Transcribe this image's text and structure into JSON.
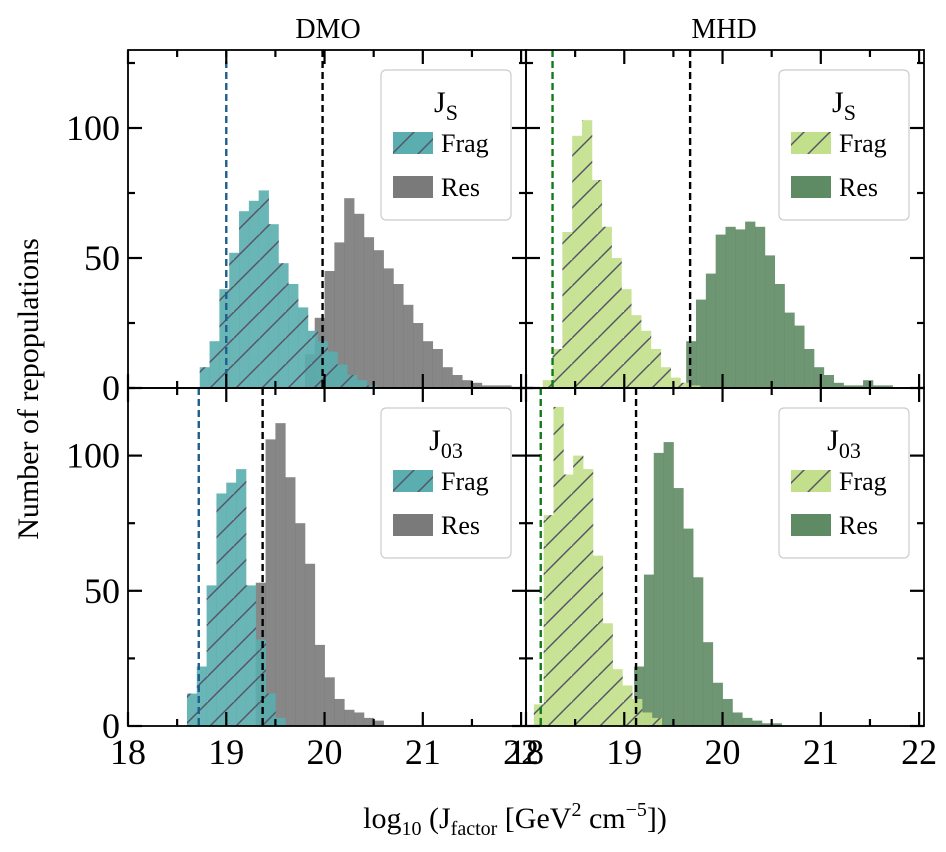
{
  "figure": {
    "column_titles": [
      "DMO",
      "MHD"
    ],
    "ylabel": "Number of repopulations",
    "xlabel_parts": {
      "prefix": "log",
      "prefix_sub": "10",
      "open": " (J",
      "factor_sub": "factor",
      "unit_a": " [GeV",
      "unit_a_sup": "2",
      "unit_b": " cm",
      "unit_b_sup": "−5",
      "close": "])"
    },
    "xticks": [
      "18",
      "19",
      "20",
      "21",
      "22"
    ],
    "yticks": [
      "0",
      "50",
      "100"
    ]
  },
  "legend": {
    "title_main": "J",
    "frag_label": "Frag",
    "res_label": "Res"
  },
  "colors": {
    "dmo_frag": "#5aaeaf",
    "dmo_res": "#7a7a7a",
    "mhd_frag": "#c2e08b",
    "mhd_res": "#5f8b64",
    "dmo_frag_line": "#1f5e8c",
    "mhd_frag_line": "#127a1a",
    "res_line": "#000000",
    "hatch": "#555566"
  },
  "chart_data": [
    {
      "type": "bar",
      "panel": "DMO J_S",
      "title": "DMO",
      "legend_title": "J",
      "legend_sub": "S",
      "xlim": [
        18,
        22.05
      ],
      "ylim": [
        0,
        130
      ],
      "bin_width": 0.1,
      "series": [
        {
          "name": "Frag",
          "color_key": "dmo_frag",
          "hatched": true,
          "start": 18.73,
          "values": [
            8,
            18,
            38,
            52,
            68,
            72,
            76,
            63,
            48,
            40,
            31,
            22,
            18,
            14,
            9,
            5,
            3,
            1
          ]
        },
        {
          "name": "Res",
          "color_key": "dmo_res",
          "start": 19.8,
          "values": [
            13,
            27,
            45,
            56,
            73,
            67,
            58,
            53,
            46,
            40,
            32,
            25,
            18,
            15,
            8,
            5,
            3,
            2,
            1,
            1,
            1
          ]
        }
      ],
      "vlines": [
        {
          "x": 19.0,
          "color_key": "dmo_frag_line"
        },
        {
          "x": 19.98,
          "color_key": "res_line"
        }
      ]
    },
    {
      "type": "bar",
      "panel": "MHD J_S",
      "title": "MHD",
      "legend_title": "J",
      "legend_sub": "S",
      "xlim": [
        18,
        22.05
      ],
      "ylim": [
        0,
        130
      ],
      "bin_width": 0.1,
      "series": [
        {
          "name": "Frag",
          "color_key": "mhd_frag",
          "hatched": true,
          "start": 18.17,
          "values": [
            3,
            15,
            60,
            97,
            103,
            80,
            62,
            50,
            38,
            28,
            22,
            15,
            8,
            4,
            2,
            1
          ]
        },
        {
          "name": "Res",
          "color_key": "mhd_res",
          "start": 19.63,
          "values": [
            18,
            34,
            44,
            59,
            62,
            61,
            64,
            62,
            51,
            40,
            29,
            24,
            15,
            8,
            5,
            2,
            1,
            1,
            3,
            1,
            1
          ]
        }
      ],
      "vlines": [
        {
          "x": 18.27,
          "color_key": "mhd_frag_line"
        },
        {
          "x": 19.67,
          "color_key": "res_line"
        }
      ]
    },
    {
      "type": "bar",
      "panel": "DMO J_03",
      "legend_title": "J",
      "legend_sub": "03",
      "xlim": [
        18,
        22.05
      ],
      "ylim": [
        0,
        125
      ],
      "bin_width": 0.1,
      "series": [
        {
          "name": "Frag",
          "color_key": "dmo_frag",
          "hatched": true,
          "start": 18.6,
          "values": [
            12,
            22,
            52,
            86,
            90,
            95,
            52,
            32,
            12,
            3
          ]
        },
        {
          "name": "Res",
          "color_key": "dmo_res",
          "start": 19.3,
          "values": [
            53,
            106,
            112,
            92,
            75,
            60,
            30,
            18,
            10,
            6,
            5,
            3,
            2
          ]
        }
      ],
      "vlines": [
        {
          "x": 18.72,
          "color_key": "dmo_frag_line"
        },
        {
          "x": 19.37,
          "color_key": "res_line"
        }
      ]
    },
    {
      "type": "bar",
      "panel": "MHD J_03",
      "legend_title": "J",
      "legend_sub": "03",
      "xlim": [
        18,
        22.05
      ],
      "ylim": [
        0,
        125
      ],
      "bin_width": 0.1,
      "series": [
        {
          "name": "Frag",
          "color_key": "mhd_frag",
          "hatched": true,
          "start": 18.08,
          "values": [
            8,
            78,
            118,
            93,
            100,
            95,
            63,
            38,
            21,
            15,
            10,
            5,
            3
          ]
        },
        {
          "name": "Res",
          "color_key": "mhd_res",
          "start": 19.1,
          "values": [
            22,
            56,
            101,
            105,
            88,
            73,
            55,
            31,
            16,
            10,
            5,
            3,
            2,
            1,
            1
          ]
        }
      ],
      "vlines": [
        {
          "x": 18.15,
          "color_key": "mhd_frag_line"
        },
        {
          "x": 19.12,
          "color_key": "res_line"
        }
      ]
    }
  ]
}
